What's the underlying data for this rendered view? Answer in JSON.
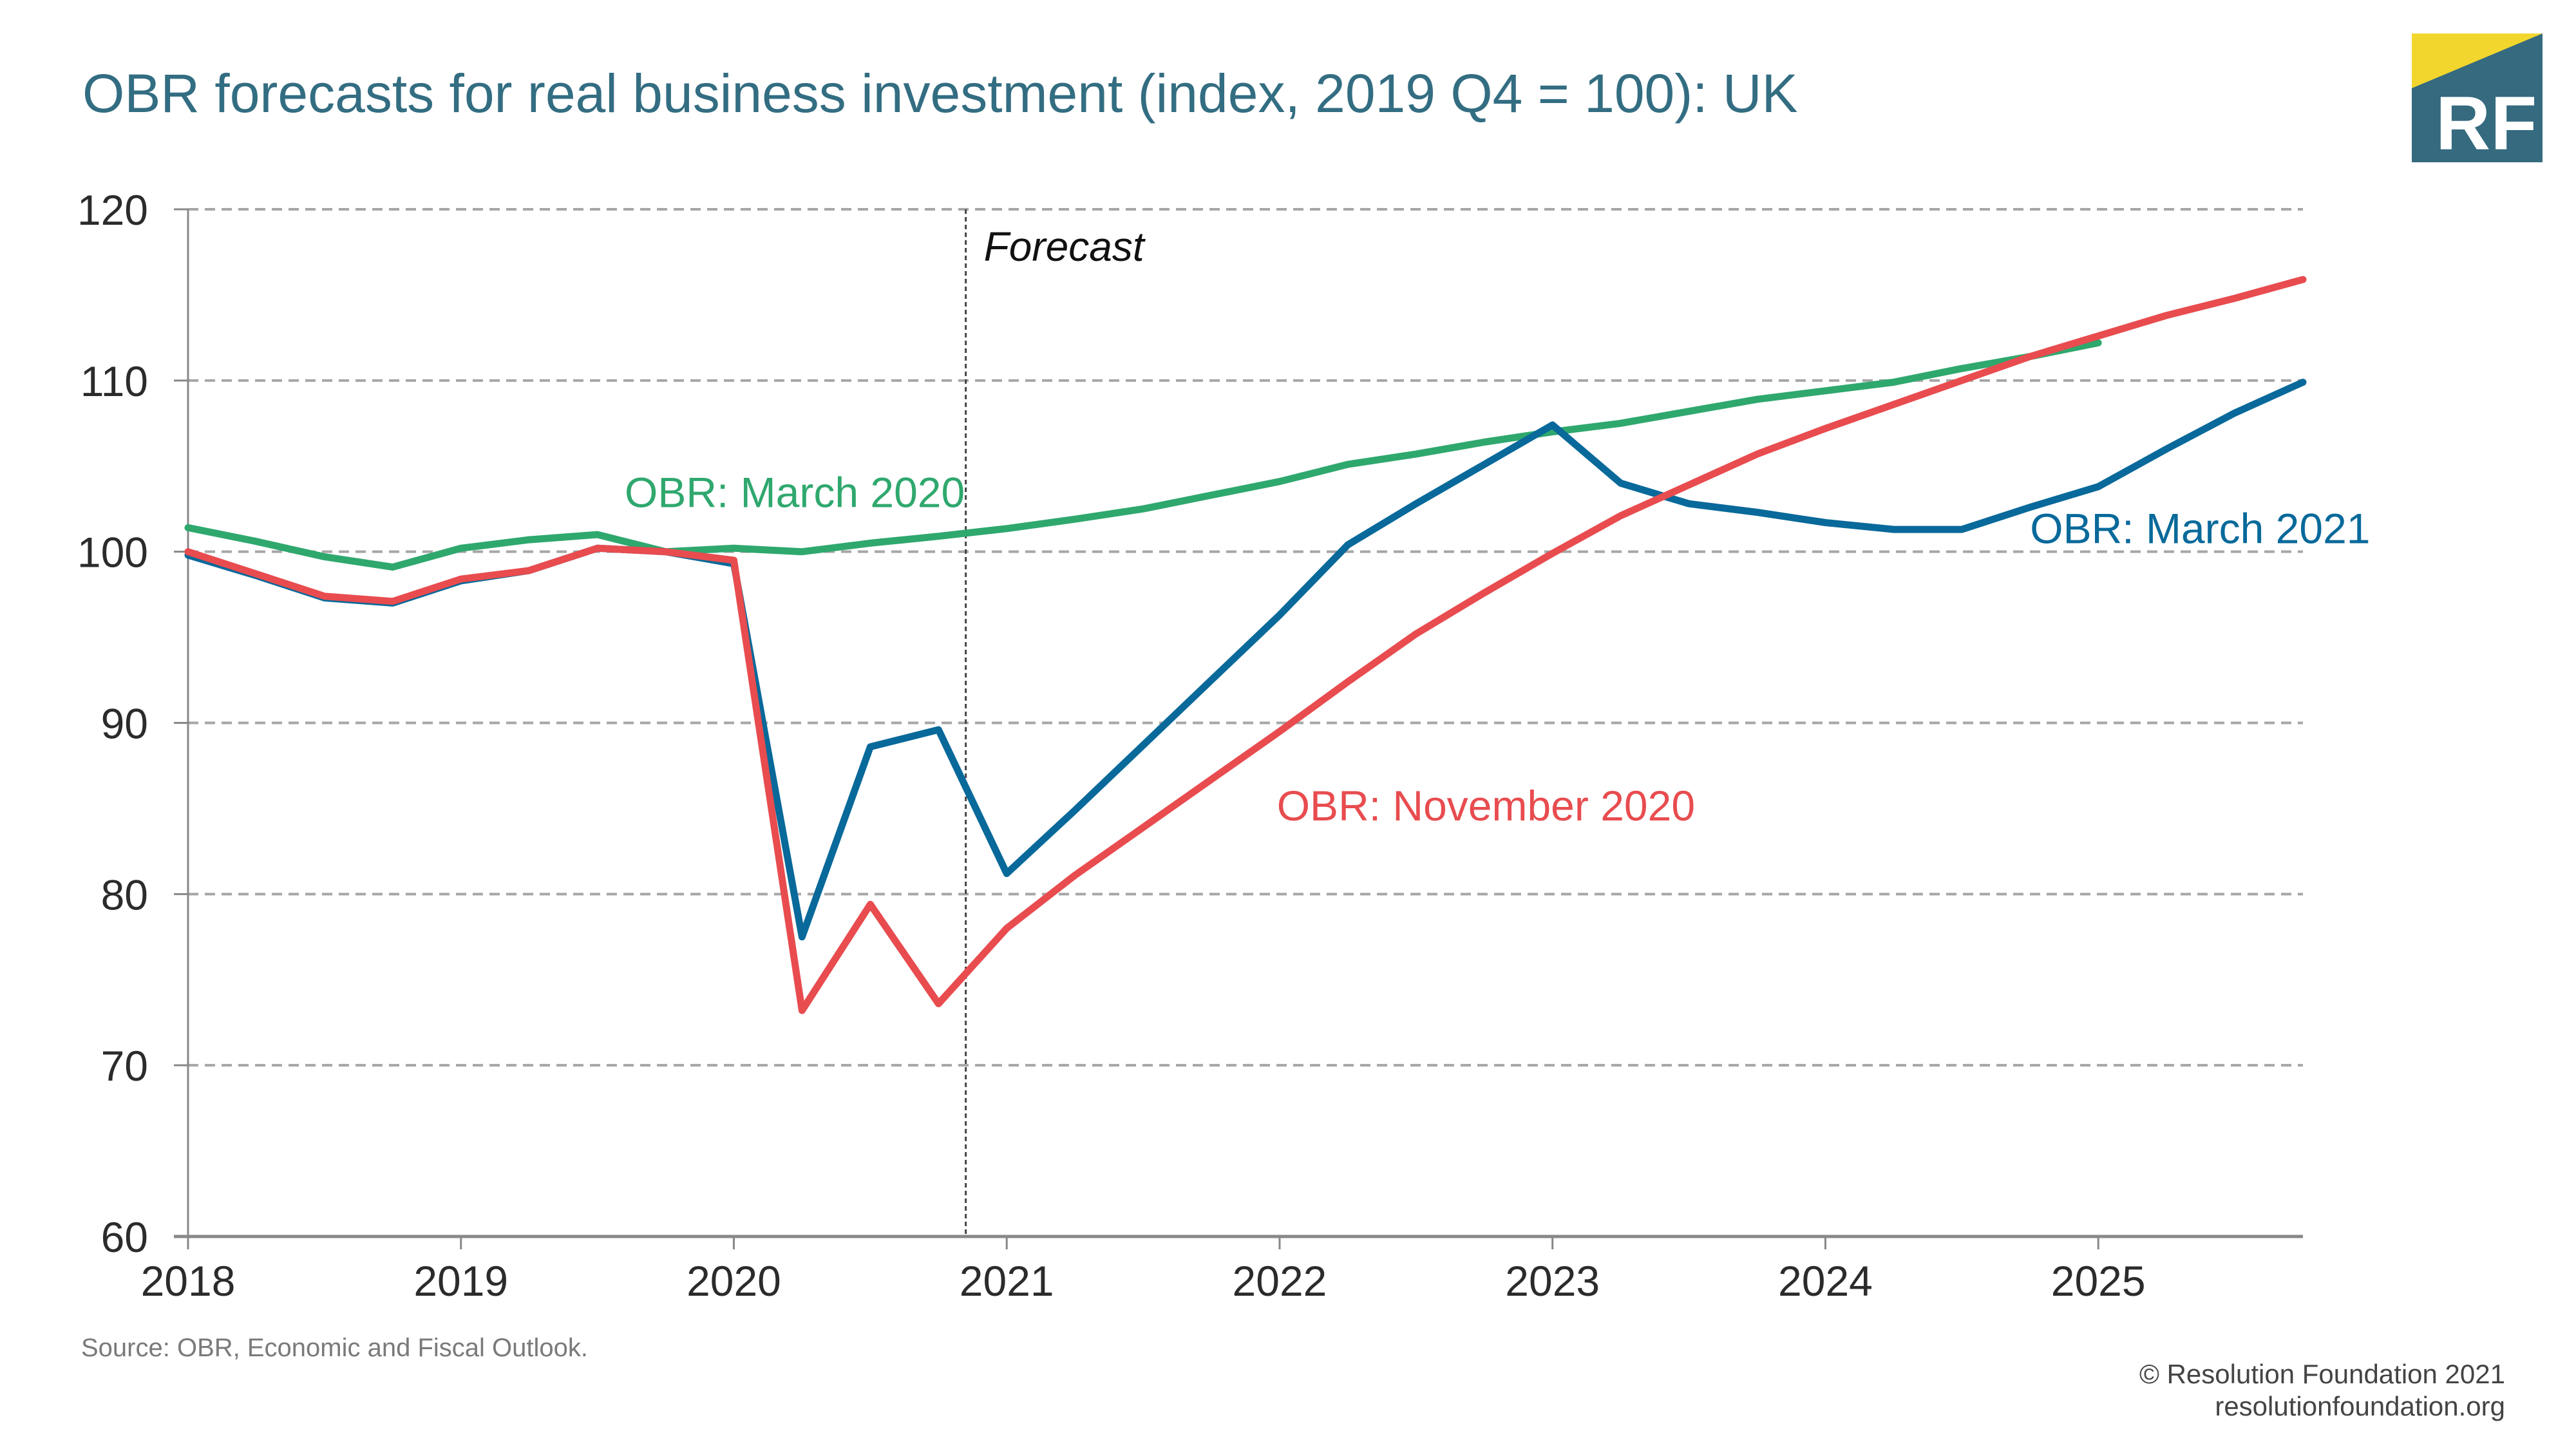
{
  "header": {
    "title": "OBR forecasts for real business investment (index, 2019 Q4 = 100): UK"
  },
  "logo": {
    "text": "RF",
    "colors": {
      "yellow": "#F2D62E",
      "teal": "#356A7F"
    }
  },
  "footer": {
    "source": "Source: OBR, Economic and Fiscal Outlook.",
    "copyright": "© Resolution Foundation 2021",
    "website": "resolutionfoundation.org"
  },
  "chart_data": {
    "type": "line",
    "title": "OBR forecasts for real business investment (index, 2019 Q4 = 100): UK",
    "xlabel": "",
    "ylabel": "",
    "x_start": 2018.0,
    "x_step": 0.25,
    "xlim": [
      2018.0,
      2025.75
    ],
    "ylim": [
      60,
      120
    ],
    "x_ticks": [
      2018,
      2019,
      2020,
      2021,
      2022,
      2023,
      2024,
      2025
    ],
    "x_tick_labels": [
      "2018",
      "2019",
      "2020",
      "2021",
      "2022",
      "2023",
      "2024",
      "2025"
    ],
    "y_ticks": [
      60,
      70,
      80,
      90,
      100,
      110,
      120
    ],
    "y_tick_labels": [
      "60",
      "70",
      "80",
      "90",
      "100",
      "110",
      "120"
    ],
    "grid": true,
    "forecast_line": {
      "x": 2020.85,
      "label": "Forecast"
    },
    "series": [
      {
        "name": "OBR: March 2020",
        "color": "#2FA86E",
        "values": [
          101.4,
          100.6,
          99.7,
          99.1,
          100.2,
          100.7,
          101.0,
          100.0,
          100.2,
          100.0,
          100.5,
          100.9,
          101.35,
          101.9,
          102.5,
          103.3,
          104.1,
          105.1,
          105.7,
          106.4,
          107.0,
          107.5,
          108.2,
          108.9,
          109.4,
          109.9,
          110.7,
          111.4,
          112.2
        ]
      },
      {
        "name": "OBR: November 2020",
        "color": "#E84C4F",
        "values": [
          100.0,
          98.7,
          97.4,
          97.1,
          98.4,
          98.9,
          100.2,
          100.0,
          99.5,
          73.2,
          79.4,
          73.6,
          78.0,
          81.1,
          83.9,
          86.7,
          89.5,
          92.4,
          95.2,
          97.6,
          99.9,
          102.1,
          103.9,
          105.7,
          107.2,
          108.6,
          110.0,
          111.4,
          112.6,
          113.8,
          114.8,
          115.9
        ]
      },
      {
        "name": "OBR: March 2021",
        "color": "#08699A",
        "values": [
          99.8,
          98.6,
          97.3,
          97.0,
          98.3,
          98.9,
          100.2,
          100.0,
          99.3,
          77.5,
          88.6,
          89.6,
          81.2,
          84.9,
          88.7,
          92.5,
          96.3,
          100.4,
          102.8,
          105.1,
          107.4,
          104.0,
          102.8,
          102.3,
          101.7,
          101.3,
          101.3,
          102.6,
          103.8,
          106.0,
          108.1,
          109.9
        ]
      }
    ],
    "annotations": [
      {
        "text": "OBR: March 2020",
        "series": "OBR: March 2020",
        "x": 2019.6,
        "y": 102.6
      },
      {
        "text": "OBR: November 2020",
        "series": "OBR: November 2020",
        "x": 2021.99,
        "y": 84.3
      },
      {
        "text": "OBR: March 2021",
        "series": "OBR: March 2021",
        "x": 2024.75,
        "y": 100.5
      }
    ]
  }
}
